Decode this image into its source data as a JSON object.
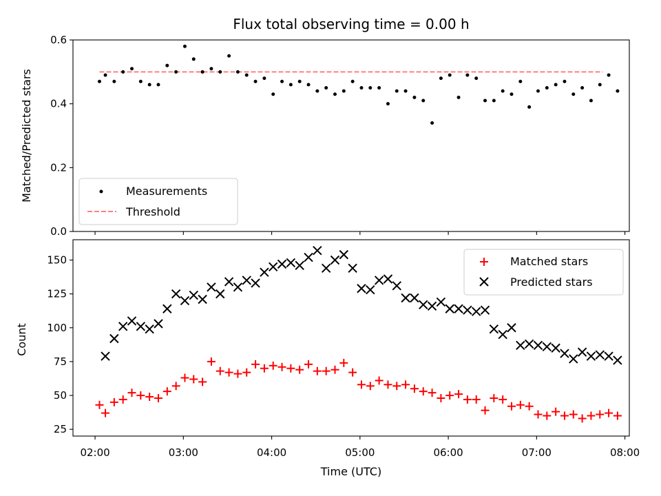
{
  "chart_data": [
    {
      "type": "scatter",
      "title": "Flux total observing time = 0.00 h",
      "ylabel": "Matched/Predicted stars",
      "ylim": [
        0,
        0.6
      ],
      "yticks": [
        "0.0",
        "0.2",
        "0.4",
        "0.6"
      ],
      "xlim": [
        "01:45",
        "08:03"
      ],
      "grid": false,
      "legend_position": "lower-left",
      "series": [
        {
          "name": "Measurements",
          "marker": "dot",
          "color": "#000000",
          "x": [
            "02:03",
            "02:07",
            "02:13",
            "02:19",
            "02:25",
            "02:31",
            "02:37",
            "02:43",
            "02:49",
            "02:55",
            "03:01",
            "03:07",
            "03:13",
            "03:19",
            "03:25",
            "03:31",
            "03:37",
            "03:43",
            "03:49",
            "03:55",
            "04:01",
            "04:07",
            "04:13",
            "04:19",
            "04:25",
            "04:31",
            "04:37",
            "04:43",
            "04:49",
            "04:55",
            "05:01",
            "05:07",
            "05:13",
            "05:19",
            "05:25",
            "05:31",
            "05:37",
            "05:43",
            "05:49",
            "05:55",
            "06:01",
            "06:07",
            "06:13",
            "06:19",
            "06:25",
            "06:31",
            "06:37",
            "06:43",
            "06:49",
            "06:55",
            "07:01",
            "07:07",
            "07:13",
            "07:19",
            "07:25",
            "07:31",
            "07:37",
            "07:43",
            "07:49",
            "07:55"
          ],
          "y": [
            0.47,
            0.49,
            0.47,
            0.5,
            0.51,
            0.47,
            0.46,
            0.46,
            0.52,
            0.5,
            0.58,
            0.54,
            0.5,
            0.51,
            0.5,
            0.55,
            0.5,
            0.49,
            0.47,
            0.48,
            0.43,
            0.47,
            0.46,
            0.47,
            0.46,
            0.44,
            0.45,
            0.43,
            0.44,
            0.47,
            0.45,
            0.45,
            0.45,
            0.4,
            0.44,
            0.44,
            0.42,
            0.41,
            0.34,
            0.48,
            0.49,
            0.42,
            0.49,
            0.48,
            0.41,
            0.41,
            0.44,
            0.43,
            0.47,
            0.39,
            0.44,
            0.45,
            0.46,
            0.47,
            0.43,
            0.45,
            0.41,
            0.46,
            0.49,
            0.44
          ]
        },
        {
          "name": "Threshold",
          "style": "dashed",
          "color": "#ff7f7f",
          "x": [
            "02:03",
            "07:45"
          ],
          "y": [
            0.5,
            0.5
          ]
        }
      ]
    },
    {
      "type": "scatter",
      "xlabel": "Time (UTC)",
      "ylabel": "Count",
      "ylim": [
        20,
        165
      ],
      "yticks": [
        "25",
        "50",
        "75",
        "100",
        "125",
        "150"
      ],
      "xlim": [
        "01:45",
        "08:03"
      ],
      "xticks": [
        "02:00",
        "03:00",
        "04:00",
        "05:00",
        "06:00",
        "07:00",
        "08:00"
      ],
      "grid": false,
      "legend_position": "upper-right",
      "series": [
        {
          "name": "Matched stars",
          "marker": "plus",
          "color": "#ff0000",
          "x": [
            "02:03",
            "02:07",
            "02:13",
            "02:19",
            "02:25",
            "02:31",
            "02:37",
            "02:43",
            "02:49",
            "02:55",
            "03:01",
            "03:07",
            "03:13",
            "03:19",
            "03:25",
            "03:31",
            "03:37",
            "03:43",
            "03:49",
            "03:55",
            "04:01",
            "04:07",
            "04:13",
            "04:19",
            "04:25",
            "04:31",
            "04:37",
            "04:43",
            "04:49",
            "04:55",
            "05:01",
            "05:07",
            "05:13",
            "05:19",
            "05:25",
            "05:31",
            "05:37",
            "05:43",
            "05:49",
            "05:55",
            "06:01",
            "06:07",
            "06:13",
            "06:19",
            "06:25",
            "06:31",
            "06:37",
            "06:43",
            "06:49",
            "06:55",
            "07:01",
            "07:07",
            "07:13",
            "07:19",
            "07:25",
            "07:31",
            "07:37",
            "07:43",
            "07:49",
            "07:55"
          ],
          "y": [
            43,
            37,
            45,
            47,
            52,
            50,
            49,
            48,
            53,
            57,
            63,
            62,
            60,
            75,
            68,
            67,
            66,
            67,
            73,
            70,
            72,
            71,
            70,
            69,
            73,
            68,
            68,
            69,
            74,
            67,
            58,
            57,
            61,
            58,
            57,
            58,
            55,
            53,
            52,
            48,
            50,
            51,
            47,
            47,
            39,
            48,
            47,
            42,
            43,
            42,
            36,
            35,
            38,
            35,
            36,
            33,
            35,
            36,
            37,
            35
          ]
        },
        {
          "name": "Predicted stars",
          "marker": "x",
          "color": "#000000",
          "x": [
            "02:07",
            "02:13",
            "02:19",
            "02:25",
            "02:31",
            "02:37",
            "02:43",
            "02:49",
            "02:55",
            "03:01",
            "03:07",
            "03:13",
            "03:19",
            "03:25",
            "03:31",
            "03:37",
            "03:43",
            "03:49",
            "03:55",
            "04:01",
            "04:07",
            "04:13",
            "04:19",
            "04:25",
            "04:31",
            "04:37",
            "04:43",
            "04:49",
            "04:55",
            "05:01",
            "05:07",
            "05:13",
            "05:19",
            "05:25",
            "05:31",
            "05:37",
            "05:43",
            "05:49",
            "05:55",
            "06:01",
            "06:07",
            "06:13",
            "06:19",
            "06:25",
            "06:31",
            "06:37",
            "06:43",
            "06:49",
            "06:55",
            "07:01",
            "07:07",
            "07:13",
            "07:19",
            "07:25",
            "07:31",
            "07:37",
            "07:43",
            "07:49",
            "07:55"
          ],
          "y": [
            79,
            92,
            101,
            105,
            101,
            99,
            103,
            114,
            125,
            120,
            124,
            121,
            130,
            125,
            134,
            130,
            135,
            133,
            141,
            145,
            147,
            148,
            146,
            152,
            157,
            144,
            150,
            154,
            144,
            129,
            128,
            135,
            136,
            131,
            122,
            122,
            117,
            116,
            119,
            114,
            114,
            113,
            112,
            113,
            99,
            95,
            100,
            87,
            88,
            87,
            86,
            85,
            81,
            77,
            82,
            79,
            80,
            79,
            76
          ]
        }
      ]
    }
  ]
}
